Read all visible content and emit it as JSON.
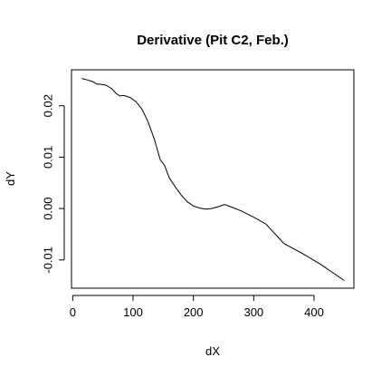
{
  "chart_data": {
    "type": "line",
    "title": "Derivative (Pit C2, Feb.)",
    "xlabel": "dX",
    "ylabel": "dY",
    "xlim": [
      -2,
      466
    ],
    "ylim": [
      -0.0155,
      0.027
    ],
    "x_ticks": [
      0,
      100,
      200,
      300,
      400
    ],
    "x_tick_labels": [
      "0",
      "100",
      "200",
      "300",
      "400"
    ],
    "y_ticks": [
      -0.01,
      0.0,
      0.01,
      0.02
    ],
    "y_tick_labels": [
      "-0.01",
      "0.00",
      "0.01",
      "0.02"
    ],
    "grid": false,
    "series": [
      {
        "x": [
          15,
          25,
          35,
          40,
          45,
          55,
          65,
          72,
          78,
          85,
          95,
          105,
          115,
          125,
          135,
          145,
          152,
          160,
          170,
          180,
          190,
          200,
          210,
          220,
          230,
          240,
          252,
          265,
          280,
          300,
          320,
          350,
          380,
          410,
          450
        ],
        "y": [
          0.0253,
          0.025,
          0.0246,
          0.0242,
          0.0242,
          0.024,
          0.0233,
          0.0224,
          0.0219,
          0.022,
          0.0216,
          0.0208,
          0.0193,
          0.0168,
          0.0136,
          0.0095,
          0.0084,
          0.006,
          0.0042,
          0.0026,
          0.0013,
          0.0005,
          0.0001,
          -0.0001,
          0.0,
          0.0003,
          0.0008,
          0.0002,
          -0.0005,
          -0.0017,
          -0.003,
          -0.0068,
          -0.0087,
          -0.0108,
          -0.014
        ]
      }
    ]
  }
}
